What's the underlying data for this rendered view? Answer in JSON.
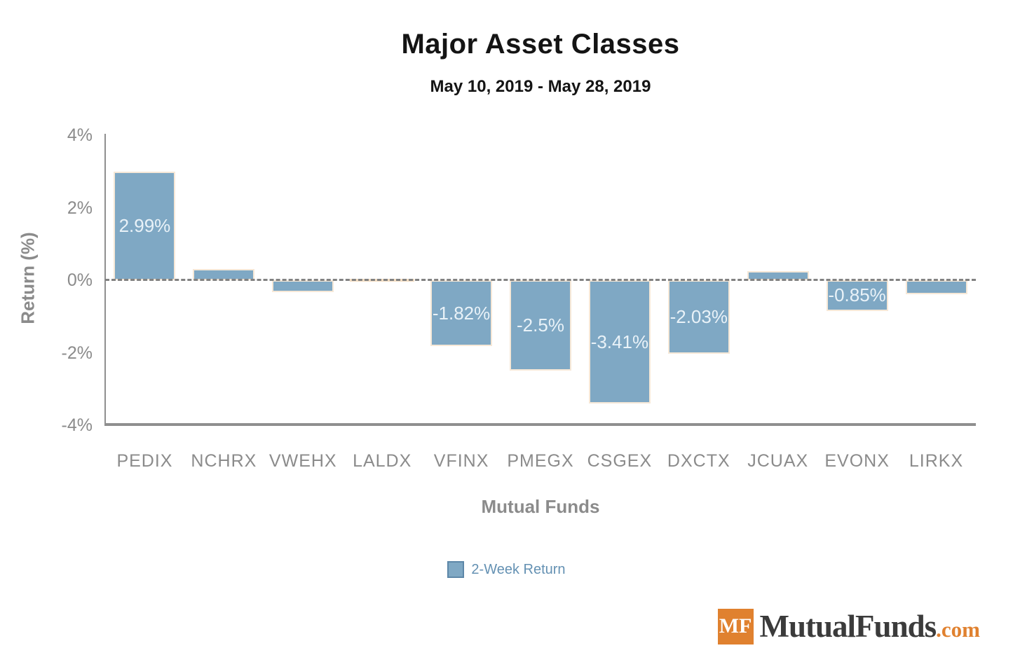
{
  "header": {
    "title": "Major Asset Classes",
    "subtitle": "May 10, 2019 - May 28, 2019"
  },
  "chart_data": {
    "type": "bar",
    "title": "Major Asset Classes",
    "subtitle": "May 10, 2019 - May 28, 2019",
    "xlabel": "Mutual Funds",
    "ylabel": "Return (%)",
    "ylim": [
      -4,
      4
    ],
    "grid": false,
    "zero_line_style": "dashed",
    "legend_position": "bottom",
    "yticks": [
      {
        "value": 4,
        "label": "4%"
      },
      {
        "value": 2,
        "label": "2%"
      },
      {
        "value": 0,
        "label": "0%"
      },
      {
        "value": -2,
        "label": "-2%"
      },
      {
        "value": -4,
        "label": "-4%"
      }
    ],
    "categories": [
      "PEDIX",
      "NCHRX",
      "VWEHX",
      "LALDX",
      "VFINX",
      "PMEGX",
      "CSGEX",
      "DXCTX",
      "JCUAX",
      "EVONX",
      "LIRKX"
    ],
    "series": [
      {
        "name": "2-Week Return",
        "values": [
          2.99,
          0.31,
          -0.32,
          0,
          -1.82,
          -2.5,
          -3.41,
          -2.03,
          0.25,
          -0.85,
          -0.38
        ],
        "bar_labels": [
          "2.99%",
          "",
          "",
          "",
          "-1.82%",
          "-2.5%",
          "-3.41%",
          "-2.03%",
          "",
          "-0.85%",
          ""
        ]
      }
    ]
  },
  "legend": {
    "label": "2-Week Return"
  },
  "logo": {
    "badge": "MF",
    "name": "MutualFunds",
    "tld": ".com"
  },
  "colors": {
    "bar_fill": "#7fa8c4",
    "bar_edge": "#f6e8d7",
    "bar_label_text": "#e9f2f8",
    "flat_bar": "#f3ddc2",
    "axis_line": "#8f8f8f",
    "zero_line": "#828282",
    "gray_text": "#8b8b8b",
    "legend_text": "#6491b3",
    "legend_swatch_border": "#5d87a8",
    "title_text": "#141414",
    "logo_orange": "#e0812f",
    "logo_dark": "#3b3b3b"
  }
}
